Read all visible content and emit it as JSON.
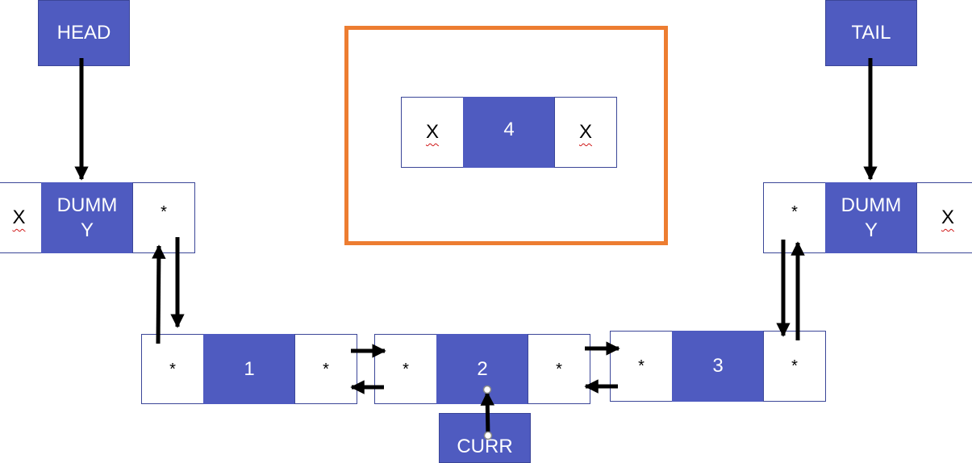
{
  "head_label": "HEAD",
  "tail_label": "TAIL",
  "curr_label": "CURR",
  "colors": {
    "node_fill": "#4f5bc0",
    "highlight_frame": "#ed7d31",
    "arrow": "#000000"
  },
  "dummy_head": {
    "prev": "X",
    "value_line1": "DUMM",
    "value_line2": "Y",
    "next": "*"
  },
  "dummy_tail": {
    "prev": "*",
    "value_line1": "DUMM",
    "value_line2": "Y",
    "next": "X"
  },
  "nodes": [
    {
      "prev": "*",
      "value": "1",
      "next": "*"
    },
    {
      "prev": "*",
      "value": "2",
      "next": "*"
    },
    {
      "prev": "*",
      "value": "3",
      "next": "*"
    }
  ],
  "new_node": {
    "prev": "X",
    "value": "4",
    "next": "X"
  }
}
